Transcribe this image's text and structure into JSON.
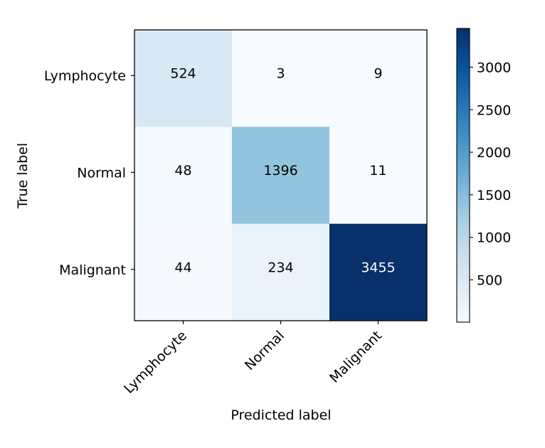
{
  "chart_data": {
    "type": "heatmap",
    "title": "",
    "xlabel": "Predicted label",
    "ylabel": "True label",
    "x_categories": [
      "Lymphocyte",
      "Normal",
      "Malignant"
    ],
    "y_categories": [
      "Lymphocyte",
      "Normal",
      "Malignant"
    ],
    "values": [
      [
        524,
        3,
        9
      ],
      [
        48,
        1396,
        11
      ],
      [
        44,
        234,
        3455
      ]
    ],
    "colormap": "Blues",
    "color_range": [
      3,
      3455
    ],
    "colorbar_ticks": [
      500,
      1000,
      1500,
      2000,
      2500,
      3000
    ],
    "colors": {
      "low": "#f7fbff",
      "high": "#08306b",
      "text_dark": "#000000",
      "text_light": "#ffffff"
    }
  }
}
